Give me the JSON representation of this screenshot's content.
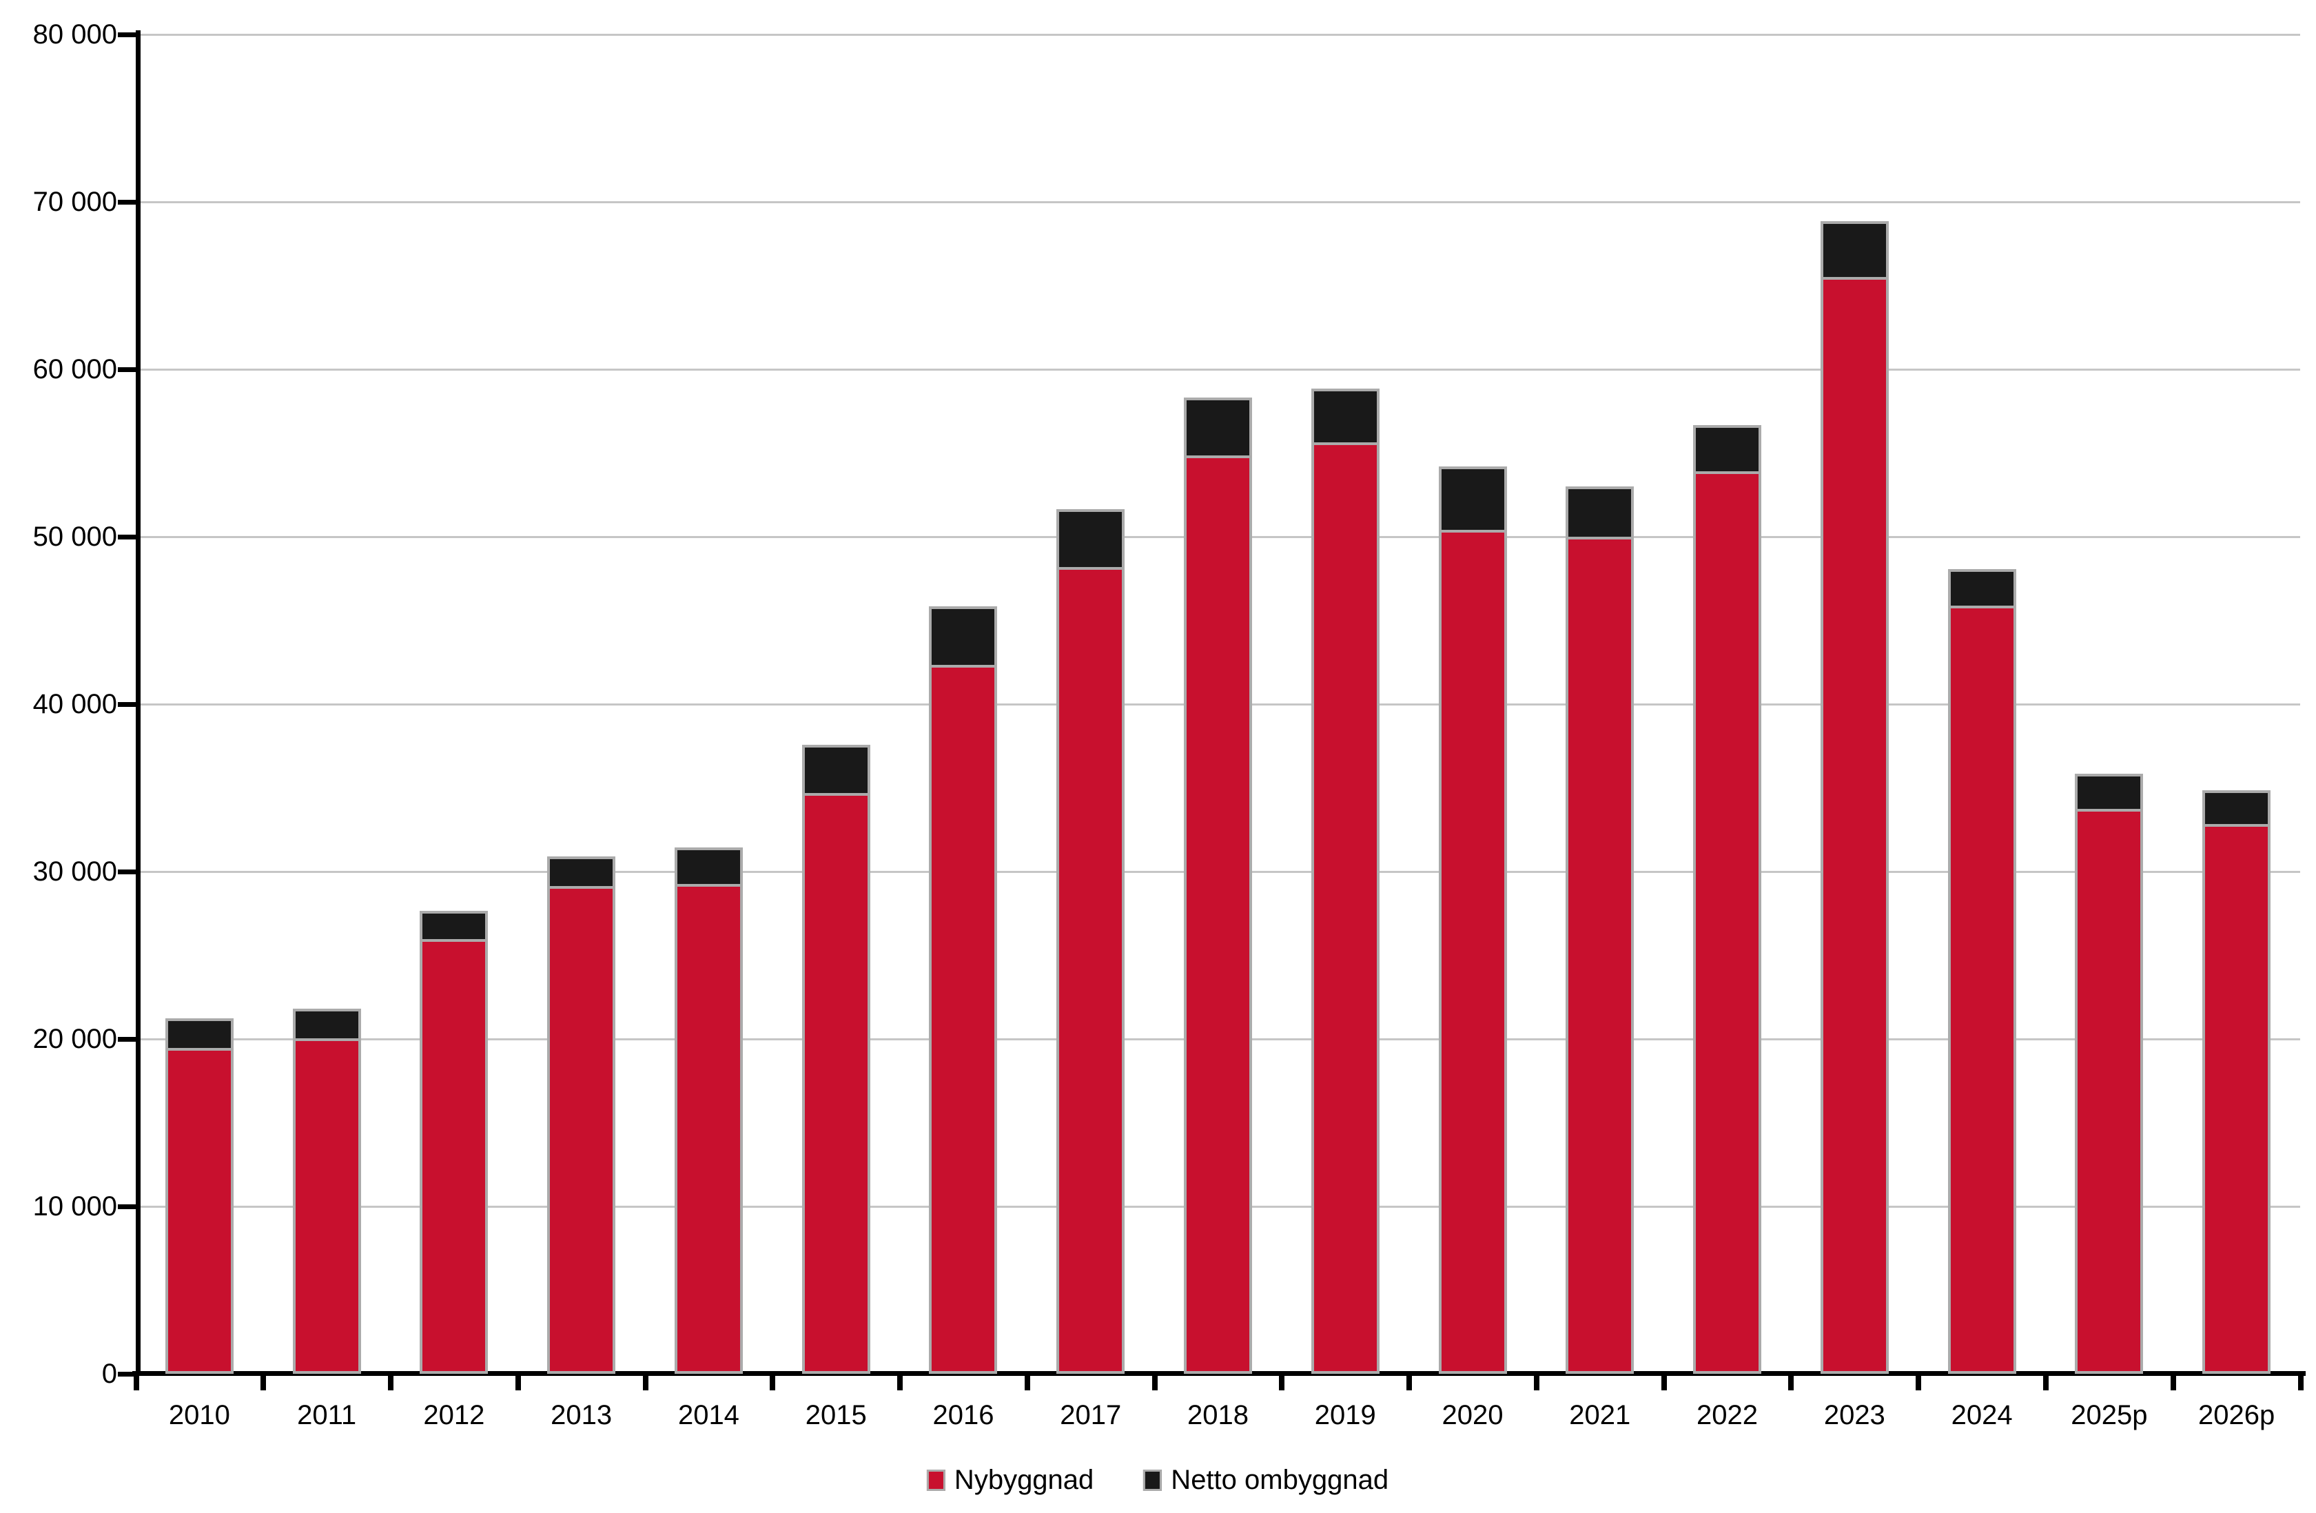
{
  "chart_data": {
    "type": "bar",
    "stacked": true,
    "title": "",
    "xlabel": "",
    "ylabel": "",
    "categories": [
      "2010",
      "2011",
      "2012",
      "2013",
      "2014",
      "2015",
      "2016",
      "2017",
      "2018",
      "2019",
      "2020",
      "2021",
      "2022",
      "2023",
      "2024",
      "2025p",
      "2026p"
    ],
    "series": [
      {
        "name": "Nybyggnad",
        "color": "#C8102E",
        "values": [
          19450,
          20050,
          25950,
          29150,
          29250,
          34700,
          42350,
          48200,
          54850,
          55650,
          50400,
          50000,
          53900,
          65500,
          45900,
          33750,
          32850
        ]
      },
      {
        "name": "Netto ombyggnad",
        "color": "#191919",
        "values": [
          1750,
          1750,
          1700,
          1750,
          2200,
          2900,
          3500,
          3450,
          3450,
          3200,
          3800,
          3000,
          2750,
          3350,
          2200,
          2100,
          2000
        ]
      }
    ],
    "totals": [
      21200,
      21800,
      27650,
      30900,
      31450,
      37600,
      45850,
      51650,
      58300,
      58850,
      54200,
      53000,
      56650,
      68850,
      48100,
      35850,
      34850
    ],
    "ylim": [
      0,
      80000
    ],
    "ytick_interval": 10000,
    "ytick_labels": [
      "0",
      "10 000",
      "20 000",
      "30 000",
      "40 000",
      "50 000",
      "60 000",
      "70 000",
      "80 000"
    ],
    "grid": "horizontal",
    "legend_position": "bottom-center",
    "colors": {
      "background": "#FFFFFF",
      "gridline": "#C6C6C6",
      "axis": "#000000",
      "bar_border": "#ABABAB",
      "text": "#000000"
    }
  }
}
